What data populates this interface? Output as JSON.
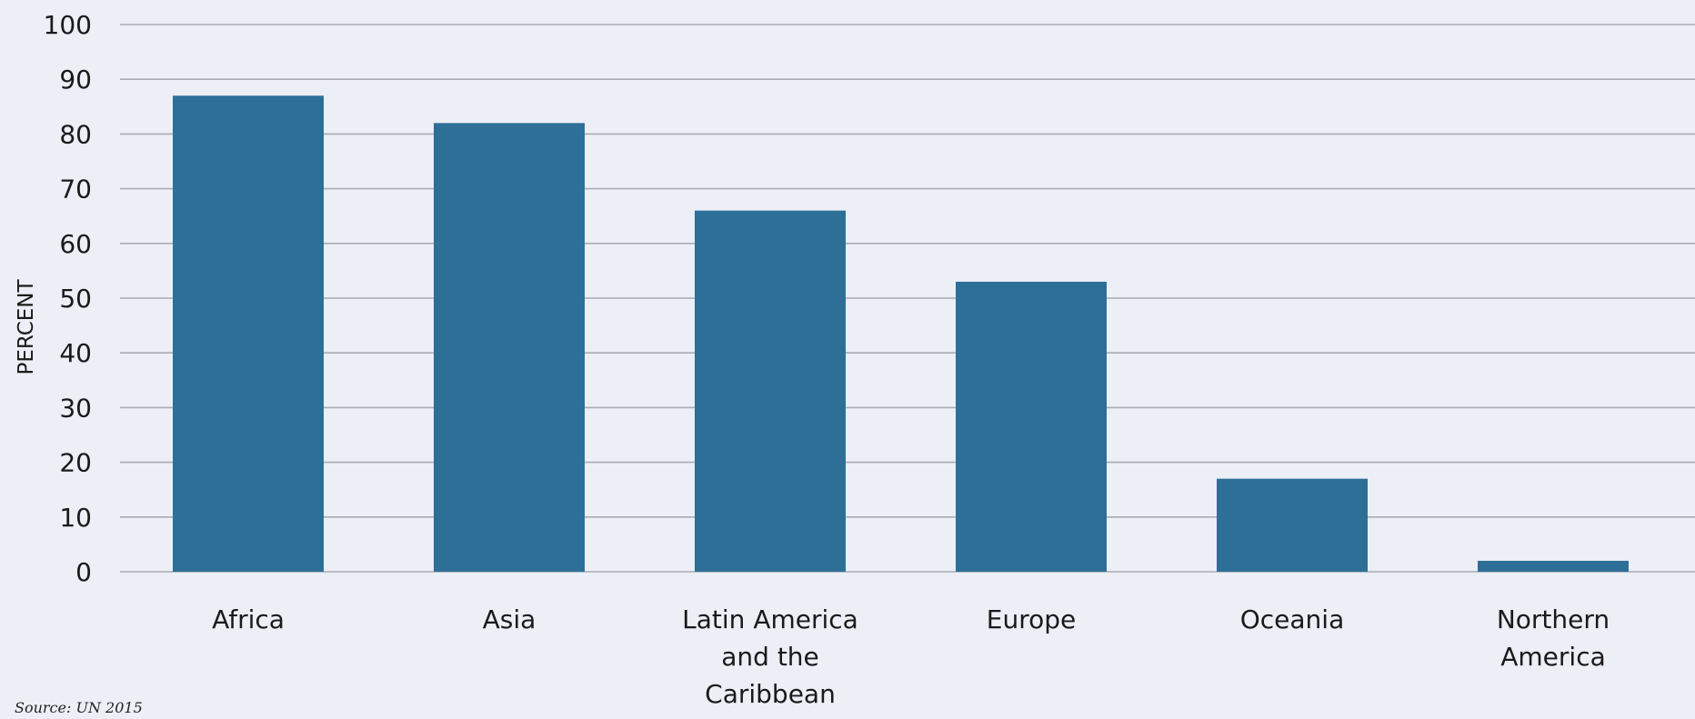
{
  "chart_data": {
    "type": "bar",
    "title": "",
    "xlabel": "",
    "ylabel": "PERCENT",
    "ylim": [
      0,
      100
    ],
    "yticks": [
      0,
      10,
      20,
      30,
      40,
      50,
      60,
      70,
      80,
      90,
      100
    ],
    "grid": true,
    "categories": [
      [
        "Africa"
      ],
      [
        "Asia"
      ],
      [
        "Latin America",
        "and the",
        "Caribbean"
      ],
      [
        "Europe"
      ],
      [
        "Oceania"
      ],
      [
        "Northern",
        "America"
      ]
    ],
    "values": [
      87,
      82,
      66,
      53,
      17,
      2
    ],
    "bar_color": "#2e6f98",
    "grid_color": "#a9acb3",
    "background_color": "#eceff6"
  },
  "source": "Source: UN 2015"
}
